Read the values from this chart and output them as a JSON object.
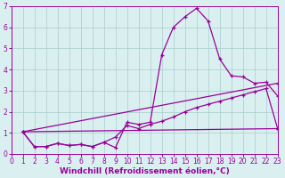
{
  "bg_color": "#daf0f0",
  "grid_color": "#aacccc",
  "line_color": "#990099",
  "marker": "+",
  "markersize": 3.5,
  "linewidth": 0.9,
  "xlabel": "Windchill (Refroidissement éolien,°C)",
  "xlabel_fontsize": 6.5,
  "tick_fontsize": 5.5,
  "xlim": [
    0,
    23
  ],
  "ylim": [
    0,
    7
  ],
  "xticks": [
    0,
    1,
    2,
    3,
    4,
    5,
    6,
    7,
    8,
    9,
    10,
    11,
    12,
    13,
    14,
    15,
    16,
    17,
    18,
    19,
    20,
    21,
    22,
    23
  ],
  "yticks": [
    0,
    1,
    2,
    3,
    4,
    5,
    6,
    7
  ],
  "curves": [
    {
      "x": [
        1,
        2,
        3,
        4,
        5,
        6,
        7,
        8,
        9,
        10,
        11,
        12,
        13,
        14,
        15,
        16,
        17,
        18,
        19,
        20,
        21,
        22,
        23
      ],
      "y": [
        1.05,
        0.35,
        0.35,
        0.5,
        0.4,
        0.45,
        0.35,
        0.55,
        0.3,
        1.5,
        1.4,
        1.5,
        4.7,
        6.0,
        6.5,
        6.9,
        6.3,
        4.5,
        3.7,
        3.65,
        3.35,
        3.4,
        2.75
      ]
    },
    {
      "x": [
        1,
        2,
        3,
        4,
        5,
        6,
        7,
        8,
        9,
        10,
        11,
        12,
        13,
        14,
        15,
        16,
        17,
        18,
        19,
        20,
        21,
        22,
        23
      ],
      "y": [
        1.05,
        0.35,
        0.35,
        0.5,
        0.4,
        0.45,
        0.35,
        0.55,
        0.8,
        1.35,
        1.2,
        1.4,
        1.55,
        1.75,
        2.0,
        2.2,
        2.35,
        2.5,
        2.65,
        2.8,
        2.95,
        3.1,
        1.2
      ]
    },
    {
      "x": [
        1,
        23
      ],
      "y": [
        1.05,
        1.2
      ]
    },
    {
      "x": [
        1,
        23
      ],
      "y": [
        1.05,
        3.35
      ]
    }
  ]
}
